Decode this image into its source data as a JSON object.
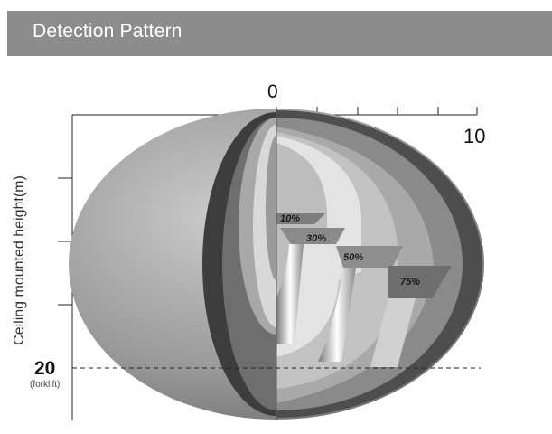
{
  "header": {
    "title": "Detection Pattern"
  },
  "axis": {
    "top_zero": "0",
    "top_ten": "10",
    "height_label": "Ceiling mounted height(m)",
    "height_mark": "20",
    "height_mark_note": "(forklift)"
  },
  "zones": [
    {
      "label": "10%"
    },
    {
      "label": "30%"
    },
    {
      "label": "50%"
    },
    {
      "label": "75%"
    }
  ],
  "colors": {
    "header_bg": "#8c8c8c",
    "header_text": "#ffffff"
  }
}
